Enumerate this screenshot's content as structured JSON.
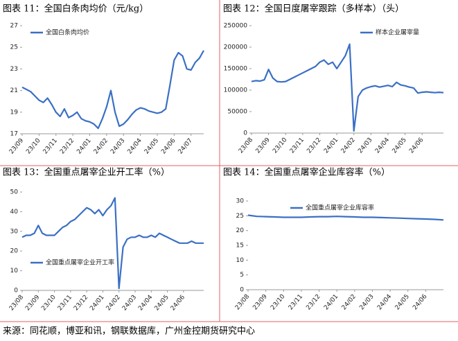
{
  "chart_data": [
    {
      "type": "line",
      "title": "图表 11：全国白条肉均价（元/kg）",
      "legend": "upper left",
      "categories": [
        "23/09",
        null,
        null,
        null,
        "23/10",
        null,
        null,
        null,
        "23/11",
        null,
        null,
        null,
        "23/12",
        null,
        null,
        null,
        "24/01",
        null,
        null,
        null,
        "24/02",
        null,
        null,
        null,
        "24/03",
        null,
        null,
        null,
        "24/04",
        null,
        null,
        null,
        "24/05",
        null,
        null,
        null,
        "24/06",
        null,
        null,
        null,
        "24/07",
        null,
        null,
        null
      ],
      "series": [
        {
          "name": "全国白条肉均价",
          "color": "#3a6fc4",
          "values": [
            21.3,
            21.1,
            20.9,
            20.5,
            20.1,
            19.9,
            20.3,
            19.7,
            19.0,
            18.6,
            19.3,
            18.5,
            18.7,
            19.0,
            18.4,
            18.2,
            18.1,
            17.9,
            17.5,
            18.4,
            19.5,
            21.0,
            19.0,
            17.7,
            17.9,
            18.3,
            18.8,
            19.2,
            19.4,
            19.3,
            19.1,
            19.0,
            18.9,
            19.0,
            19.3,
            21.5,
            23.8,
            24.5,
            24.2,
            23.0,
            22.9,
            23.6,
            24.0,
            24.7
          ]
        }
      ],
      "ylim": [
        17,
        27
      ],
      "yticks": [
        17,
        19,
        21,
        23,
        25,
        27
      ]
    },
    {
      "type": "line",
      "title": "图表 12：全国日度屠宰跟踪（多样本）（头）",
      "legend": "upper right",
      "categories": [
        "23/08",
        null,
        null,
        null,
        "23/09",
        null,
        null,
        null,
        "23/10",
        null,
        null,
        null,
        "23/11",
        null,
        null,
        null,
        "23/12",
        null,
        null,
        null,
        "24/01",
        null,
        null,
        null,
        "24/02",
        null,
        null,
        null,
        "24/03",
        null,
        null,
        null,
        "24/04",
        null,
        null,
        null,
        "24/05",
        null,
        null,
        null,
        "24/06",
        null,
        null,
        null,
        null,
        null
      ],
      "series": [
        {
          "name": "样本企业屠宰量",
          "color": "#3a6fc4",
          "values": [
            120000,
            122000,
            121000,
            124000,
            148000,
            128000,
            120000,
            119000,
            120000,
            125000,
            130000,
            135000,
            140000,
            145000,
            150000,
            155000,
            165000,
            170000,
            160000,
            165000,
            150000,
            165000,
            180000,
            207000,
            5000,
            85000,
            100000,
            105000,
            108000,
            110000,
            107000,
            109000,
            111000,
            108000,
            118000,
            112000,
            110000,
            107000,
            105000,
            93000,
            95000,
            96000,
            95000,
            94000,
            95000,
            94000
          ]
        }
      ],
      "ylim": [
        0,
        250000
      ],
      "yticks": [
        0,
        50000,
        100000,
        150000,
        200000,
        250000
      ]
    },
    {
      "type": "line",
      "title": "图表 13：全国重点屠宰企业开工率（%）",
      "legend": "lower left",
      "categories": [
        "23/08",
        null,
        null,
        null,
        "23/09",
        null,
        null,
        null,
        "23/10",
        null,
        null,
        null,
        "23/11",
        null,
        null,
        null,
        "23/12",
        null,
        null,
        null,
        "24/01",
        null,
        null,
        null,
        "24/02",
        null,
        null,
        null,
        "24/03",
        null,
        null,
        null,
        "24/04",
        null,
        null,
        null,
        "24/05",
        null,
        null,
        null,
        "24/06",
        null,
        null,
        null,
        null,
        null
      ],
      "series": [
        {
          "name": "全国重点屠宰企业开工率",
          "color": "#3a6fc4",
          "values": [
            27,
            28,
            28,
            29,
            33,
            29,
            28,
            28,
            28,
            30,
            32,
            33,
            35,
            36,
            38,
            40,
            42,
            41,
            39,
            41,
            38,
            41,
            43,
            47,
            1,
            22,
            26,
            27,
            27,
            28,
            27,
            27,
            28,
            27,
            29,
            28,
            27,
            26,
            25,
            24,
            24,
            24,
            25,
            24,
            24,
            24
          ]
        }
      ],
      "ylim": [
        0,
        50
      ],
      "yticks": [
        0,
        10,
        20,
        30,
        40,
        50
      ]
    },
    {
      "type": "line",
      "title": "图表 14：全国重点屠宰企业库容率（%）",
      "legend": "upper center",
      "categories": [
        "23/08",
        null,
        "23/09",
        null,
        "23/10",
        null,
        "23/11",
        null,
        "23/12",
        null,
        "24/01",
        null,
        "24/02",
        null,
        "24/03",
        null,
        "24/04",
        null,
        "24/05",
        null,
        "24/06",
        null,
        null
      ],
      "series": [
        {
          "name": "全国重点屠宰企业库容率",
          "color": "#3a6fc4",
          "values": [
            25.2,
            24.8,
            24.7,
            24.6,
            24.5,
            24.5,
            24.5,
            24.6,
            24.7,
            24.7,
            24.8,
            24.7,
            24.6,
            24.5,
            24.5,
            24.4,
            24.3,
            24.2,
            24.1,
            24.0,
            23.9,
            23.8,
            23.6
          ]
        }
      ],
      "ylim": [
        0,
        30
      ],
      "yticks": [
        0,
        5,
        10,
        15,
        20,
        25,
        30
      ]
    }
  ],
  "source": "来源：同花顺，博亚和讯，钢联数据库，广州金控期货研究中心"
}
